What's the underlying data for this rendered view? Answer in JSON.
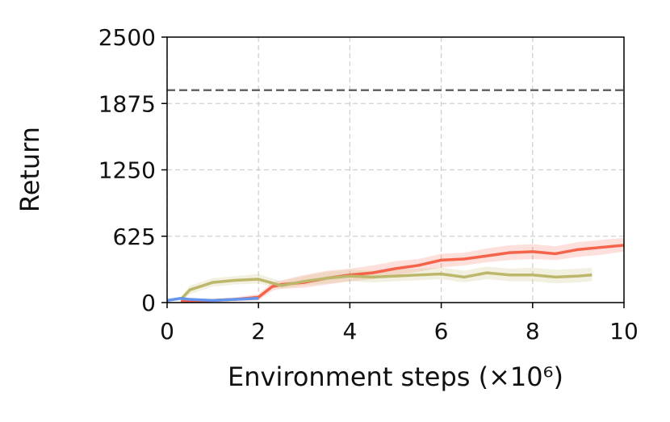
{
  "chart_data": {
    "type": "line",
    "xlabel": "Environment steps (×10⁶)",
    "ylabel": "Return",
    "xlim": [
      0,
      10
    ],
    "ylim": [
      0,
      2500
    ],
    "xticks": [
      0,
      2,
      4,
      6,
      8,
      10
    ],
    "yticks": [
      0,
      625,
      1250,
      1875,
      2500
    ],
    "grid": true,
    "reference_line": {
      "value": 2000,
      "color": "#666666"
    },
    "series": [
      {
        "color": "#f4634a",
        "x": [
          0.3,
          1,
          1.5,
          2,
          2.3,
          2.5,
          3,
          3.5,
          4,
          4.5,
          5,
          5.5,
          6,
          6.5,
          7,
          7.5,
          8,
          8.5,
          9,
          9.5,
          10
        ],
        "values": [
          10,
          20,
          30,
          50,
          150,
          170,
          190,
          230,
          260,
          280,
          320,
          350,
          400,
          410,
          440,
          470,
          480,
          460,
          500,
          520,
          540
        ],
        "lower": [
          0,
          5,
          10,
          20,
          110,
          130,
          140,
          170,
          200,
          220,
          260,
          290,
          330,
          350,
          380,
          400,
          410,
          400,
          430,
          450,
          480
        ],
        "upper": [
          20,
          35,
          50,
          80,
          190,
          210,
          260,
          300,
          320,
          350,
          390,
          410,
          460,
          470,
          510,
          540,
          550,
          530,
          570,
          590,
          610
        ]
      },
      {
        "color": "#bdb76b",
        "x": [
          0.3,
          0.5,
          1,
          1.5,
          2,
          2.5,
          3,
          3.5,
          4,
          4.5,
          5,
          5.5,
          6,
          6.5,
          7,
          7.5,
          8,
          8.5,
          9,
          9.3
        ],
        "values": [
          30,
          120,
          190,
          210,
          220,
          160,
          200,
          230,
          250,
          240,
          250,
          260,
          270,
          240,
          280,
          260,
          260,
          240,
          250,
          260
        ],
        "lower": [
          10,
          80,
          150,
          170,
          180,
          130,
          160,
          180,
          200,
          190,
          200,
          210,
          220,
          190,
          220,
          200,
          200,
          180,
          190,
          200
        ],
        "upper": [
          50,
          160,
          230,
          250,
          270,
          200,
          250,
          290,
          310,
          300,
          310,
          320,
          330,
          300,
          340,
          320,
          330,
          310,
          320,
          330
        ]
      },
      {
        "color": "#6495ed",
        "x": [
          0,
          0.3,
          0.5,
          1,
          1.5,
          2
        ],
        "values": [
          20,
          40,
          30,
          20,
          30,
          40
        ]
      }
    ]
  }
}
